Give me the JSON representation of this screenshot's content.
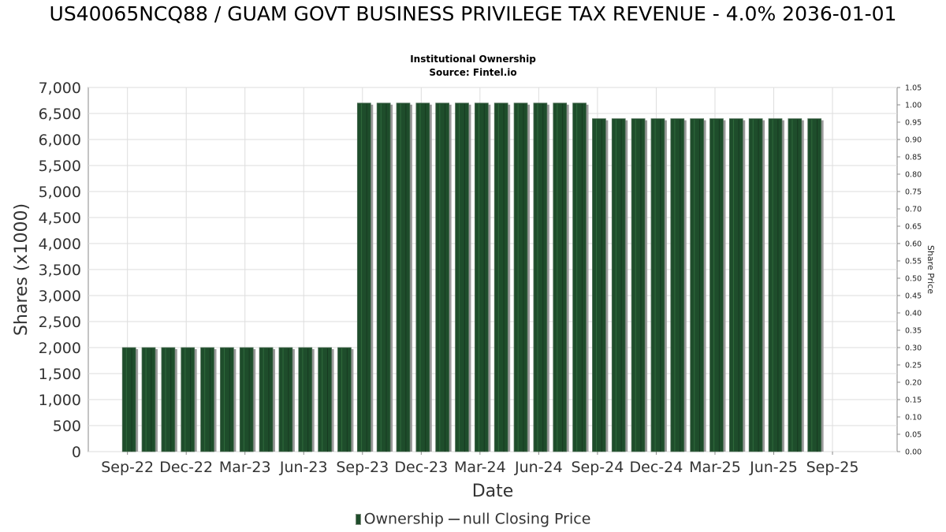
{
  "chart_data": {
    "type": "bar",
    "title": "US40065NCQ88 / GUAM GOVT BUSINESS PRIVILEGE TAX REVENUE - 4.0% 2036-01-01",
    "subtitle": "Institutional Ownership",
    "source": "Source: Fintel.io",
    "xlabel": "Date",
    "ylabel": "Shares (x1000)",
    "y2label": "Share Price",
    "ylim": [
      0,
      7000
    ],
    "y2lim": [
      0,
      1.05
    ],
    "yticks": [
      "0",
      "500",
      "1,000",
      "1,500",
      "2,000",
      "2,500",
      "3,000",
      "3,500",
      "4,000",
      "4,500",
      "5,000",
      "5,500",
      "6,000",
      "6,500",
      "7,000"
    ],
    "y2ticks": [
      "0.00",
      "0.05",
      "0.10",
      "0.15",
      "0.20",
      "0.25",
      "0.30",
      "0.35",
      "0.40",
      "0.45",
      "0.50",
      "0.55",
      "0.60",
      "0.65",
      "0.70",
      "0.75",
      "0.80",
      "0.85",
      "0.90",
      "0.95",
      "1.00",
      "1.05"
    ],
    "xticks": [
      "Sep-22",
      "Dec-22",
      "Mar-23",
      "Jun-23",
      "Sep-23",
      "Dec-23",
      "Mar-24",
      "Jun-24",
      "Sep-24",
      "Dec-24",
      "Mar-25",
      "Jun-25",
      "Sep-25"
    ],
    "x_range_months": [
      0,
      38
    ],
    "series": [
      {
        "name": "Ownership",
        "color": "#1e4d2b",
        "x_months": [
          0,
          1,
          2,
          3,
          4,
          5,
          6,
          7,
          8,
          9,
          10,
          11,
          12,
          13,
          14,
          15,
          16,
          17,
          18,
          19,
          20,
          21,
          22,
          23,
          24,
          25,
          26,
          27,
          28,
          29,
          30,
          31,
          32,
          33,
          34,
          35
        ],
        "values": [
          2000,
          2000,
          2000,
          2000,
          2000,
          2000,
          2000,
          2000,
          2000,
          2000,
          2000,
          2000,
          6700,
          6700,
          6700,
          6700,
          6700,
          6700,
          6700,
          6700,
          6700,
          6700,
          6700,
          6700,
          6400,
          6400,
          6400,
          6400,
          6400,
          6400,
          6400,
          6400,
          6400,
          6400,
          6400,
          6400
        ]
      }
    ],
    "legend": {
      "ownership_label": "Ownership",
      "price_label": "null Closing Price"
    }
  }
}
